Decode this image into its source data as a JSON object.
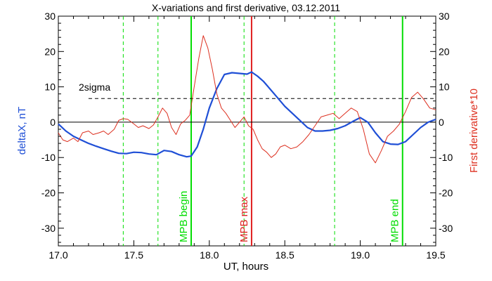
{
  "chart_data": {
    "type": "line",
    "title": "X-variations and first derivative, 03.12.2011",
    "xlabel": "UT, hours",
    "ylabel_left": "deltaX, nT",
    "ylabel_right": "First derivative*10",
    "xlim": [
      17.0,
      19.5
    ],
    "ylim": [
      -35,
      30
    ],
    "x_ticks": [
      "17.0",
      "17.5",
      "18.0",
      "18.5",
      "19.0",
      "19.5"
    ],
    "y_ticks": [
      "30",
      "20",
      "10",
      "0",
      "-10",
      "-20",
      "-30"
    ],
    "zero_line": 0,
    "threshold": {
      "label": "2sigma",
      "value": 6.7,
      "style": "dashed"
    },
    "markers": [
      {
        "x": 17.88,
        "label": "MPB begin",
        "color": "#00dd00",
        "style": "solid"
      },
      {
        "x": 18.28,
        "label": "MPB max",
        "color": "#e02020",
        "style": "solid"
      },
      {
        "x": 19.28,
        "label": "MPB end",
        "color": "#00dd00",
        "style": "solid"
      }
    ],
    "dashed_markers": [
      17.43,
      17.66,
      18.23,
      18.83
    ],
    "series": [
      {
        "axis": "left",
        "color": "#1f4fd6",
        "x": [
          17.0,
          17.05,
          17.1,
          17.15,
          17.2,
          17.25,
          17.3,
          17.35,
          17.4,
          17.45,
          17.5,
          17.55,
          17.6,
          17.65,
          17.7,
          17.75,
          17.8,
          17.85,
          17.88,
          17.92,
          17.96,
          18.0,
          18.05,
          18.1,
          18.15,
          18.2,
          18.25,
          18.28,
          18.32,
          18.36,
          18.4,
          18.45,
          18.5,
          18.55,
          18.6,
          18.65,
          18.7,
          18.75,
          18.8,
          18.85,
          18.9,
          18.95,
          19.0,
          19.05,
          19.1,
          19.15,
          19.2,
          19.25,
          19.3,
          19.35,
          19.4,
          19.45,
          19.5
        ],
        "values": [
          -0.5,
          -2.5,
          -4.0,
          -5.0,
          -6.0,
          -6.8,
          -7.5,
          -8.2,
          -8.8,
          -8.9,
          -8.5,
          -8.6,
          -9.0,
          -9.2,
          -8.0,
          -8.3,
          -9.2,
          -9.8,
          -9.6,
          -7.0,
          -2.0,
          4.0,
          9.5,
          13.5,
          14.0,
          13.8,
          13.6,
          14.2,
          13.0,
          11.5,
          9.5,
          7.0,
          4.5,
          2.5,
          0.5,
          -1.5,
          -2.5,
          -2.5,
          -2.3,
          -1.8,
          -1.0,
          0.2,
          1.3,
          0.0,
          -3.0,
          -5.5,
          -6.2,
          -6.3,
          -5.5,
          -3.5,
          -1.5,
          0.0,
          0.8
        ]
      },
      {
        "axis": "right",
        "color": "#dd3020",
        "x": [
          17.0,
          17.03,
          17.06,
          17.1,
          17.13,
          17.16,
          17.2,
          17.23,
          17.27,
          17.3,
          17.33,
          17.37,
          17.4,
          17.43,
          17.46,
          17.5,
          17.53,
          17.56,
          17.6,
          17.63,
          17.66,
          17.69,
          17.72,
          17.75,
          17.78,
          17.81,
          17.84,
          17.87,
          17.9,
          17.93,
          17.96,
          17.99,
          18.02,
          18.05,
          18.08,
          18.11,
          18.14,
          18.17,
          18.2,
          18.23,
          18.26,
          18.29,
          18.32,
          18.35,
          18.38,
          18.41,
          18.44,
          18.47,
          18.5,
          18.54,
          18.58,
          18.62,
          18.66,
          18.7,
          18.74,
          18.78,
          18.82,
          18.86,
          18.9,
          18.94,
          18.98,
          19.02,
          19.06,
          19.1,
          19.14,
          19.18,
          19.22,
          19.26,
          19.3,
          19.34,
          19.38,
          19.42,
          19.46,
          19.5
        ],
        "values": [
          -3.0,
          -5.0,
          -5.5,
          -4.5,
          -5.5,
          -3.0,
          -2.5,
          -3.5,
          -3.0,
          -2.5,
          -3.5,
          -2.0,
          0.5,
          1.0,
          0.8,
          -0.5,
          -1.5,
          -1.0,
          -1.8,
          -0.8,
          1.5,
          4.0,
          2.5,
          -1.5,
          -3.5,
          -0.5,
          0.5,
          2.0,
          10.0,
          18.0,
          24.5,
          21.0,
          15.0,
          8.0,
          4.0,
          2.5,
          0.5,
          -1.5,
          0.0,
          1.5,
          -1.0,
          -2.0,
          -5.0,
          -7.5,
          -8.5,
          -10.0,
          -9.0,
          -7.0,
          -6.5,
          -7.5,
          -7.0,
          -5.5,
          -3.5,
          -1.0,
          1.5,
          2.0,
          2.5,
          1.0,
          2.5,
          4.0,
          3.0,
          -2.0,
          -9.0,
          -11.5,
          -8.0,
          -4.0,
          -2.5,
          -0.5,
          3.0,
          7.0,
          8.5,
          6.5,
          4.0,
          3.5
        ]
      }
    ],
    "grid": false
  }
}
